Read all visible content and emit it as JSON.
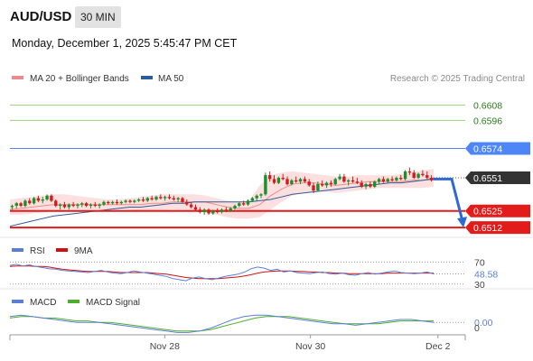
{
  "header": {
    "pair": "AUD/USD",
    "interval": "30 MIN",
    "datetime": "Monday, December 1, 2025 5:45:47 PM CET"
  },
  "colors": {
    "resistance": "#9bd07c",
    "pivot": "#4f86f7",
    "support": "#e21b1b",
    "current": "#333333",
    "ma20": "#f08a8a",
    "bollinger_fill": "#fbd6d6",
    "ma50": "#2e5b9a",
    "candle_up": "#1a8f2a",
    "candle_down": "#d01c1c",
    "rsi": "#5b7fd6",
    "rsi_ma": "#cc1111",
    "macd": "#5b7fd6",
    "macd_signal": "#4caf2a",
    "arrow": "#2e6ad1"
  },
  "chart_data": [
    {
      "type": "candlestick",
      "panel": "price",
      "legend": [
        {
          "label": "MA 20 + Bollinger Bands",
          "color": "#f08a8a"
        },
        {
          "label": "MA 50",
          "color": "#2e5b9a"
        }
      ],
      "credit": "Research © 2025 Trading Central",
      "ylim": [
        0.6505,
        0.6621
      ],
      "levels": [
        {
          "value": 0.6608,
          "label": "0.6608",
          "kind": "resistance"
        },
        {
          "value": 0.6596,
          "label": "0.6596",
          "kind": "resistance"
        },
        {
          "value": 0.6574,
          "label": "0.6574",
          "kind": "pivot"
        },
        {
          "value": 0.6551,
          "label": "0.6551",
          "kind": "current"
        },
        {
          "value": 0.6525,
          "label": "0.6525",
          "kind": "support"
        },
        {
          "value": 0.6512,
          "label": "0.6512",
          "kind": "support"
        }
      ],
      "candles": [
        [
          0.6528,
          0.653,
          0.6526,
          0.6529
        ],
        [
          0.6529,
          0.6532,
          0.6527,
          0.6531
        ],
        [
          0.6531,
          0.6532,
          0.6528,
          0.6529
        ],
        [
          0.6529,
          0.6534,
          0.6528,
          0.6533
        ],
        [
          0.6533,
          0.6535,
          0.653,
          0.6531
        ],
        [
          0.6531,
          0.6536,
          0.653,
          0.6535
        ],
        [
          0.6535,
          0.6537,
          0.6532,
          0.6533
        ],
        [
          0.6533,
          0.6536,
          0.6531,
          0.6534
        ],
        [
          0.6534,
          0.6538,
          0.6533,
          0.6537
        ],
        [
          0.6537,
          0.6538,
          0.6532,
          0.6533
        ],
        [
          0.6533,
          0.6534,
          0.6528,
          0.6529
        ],
        [
          0.6529,
          0.6531,
          0.6526,
          0.653
        ],
        [
          0.653,
          0.6532,
          0.6527,
          0.6528
        ],
        [
          0.6528,
          0.6531,
          0.6526,
          0.653
        ],
        [
          0.653,
          0.6532,
          0.6528,
          0.6529
        ],
        [
          0.6529,
          0.6531,
          0.6527,
          0.653
        ],
        [
          0.653,
          0.6532,
          0.6528,
          0.6531
        ],
        [
          0.6531,
          0.6532,
          0.6528,
          0.6529
        ],
        [
          0.6529,
          0.6531,
          0.6527,
          0.653
        ],
        [
          0.653,
          0.6532,
          0.6528,
          0.6529
        ],
        [
          0.6529,
          0.6531,
          0.6527,
          0.653
        ],
        [
          0.653,
          0.6533,
          0.6529,
          0.6532
        ],
        [
          0.6532,
          0.6533,
          0.653,
          0.6531
        ],
        [
          0.6531,
          0.6533,
          0.653,
          0.6532
        ],
        [
          0.6532,
          0.6534,
          0.653,
          0.6531
        ],
        [
          0.6531,
          0.6533,
          0.653,
          0.6532
        ],
        [
          0.6532,
          0.6534,
          0.6531,
          0.6533
        ],
        [
          0.6533,
          0.6534,
          0.6531,
          0.6532
        ],
        [
          0.6532,
          0.6534,
          0.6531,
          0.6533
        ],
        [
          0.6533,
          0.6535,
          0.6532,
          0.6534
        ],
        [
          0.6534,
          0.6536,
          0.6532,
          0.6533
        ],
        [
          0.6533,
          0.6536,
          0.6532,
          0.6535
        ],
        [
          0.6535,
          0.6537,
          0.6533,
          0.6534
        ],
        [
          0.6534,
          0.6537,
          0.6533,
          0.6536
        ],
        [
          0.6536,
          0.6538,
          0.6534,
          0.6535
        ],
        [
          0.6535,
          0.6537,
          0.6533,
          0.6536
        ],
        [
          0.6536,
          0.6538,
          0.6534,
          0.6535
        ],
        [
          0.6535,
          0.6537,
          0.6533,
          0.6534
        ],
        [
          0.6534,
          0.6536,
          0.6532,
          0.6535
        ],
        [
          0.6535,
          0.6536,
          0.6531,
          0.6532
        ],
        [
          0.6532,
          0.6534,
          0.6529,
          0.653
        ],
        [
          0.653,
          0.6532,
          0.6527,
          0.6528
        ],
        [
          0.6528,
          0.653,
          0.6525,
          0.6526
        ],
        [
          0.6526,
          0.6528,
          0.6523,
          0.6524
        ],
        [
          0.6524,
          0.6527,
          0.6522,
          0.6526
        ],
        [
          0.6526,
          0.6527,
          0.6522,
          0.6523
        ],
        [
          0.6523,
          0.6526,
          0.6522,
          0.6525
        ],
        [
          0.6525,
          0.6527,
          0.6523,
          0.6524
        ],
        [
          0.6524,
          0.6527,
          0.6523,
          0.6526
        ],
        [
          0.6526,
          0.6528,
          0.6524,
          0.6525
        ],
        [
          0.6525,
          0.6528,
          0.6524,
          0.6527
        ],
        [
          0.6527,
          0.653,
          0.6526,
          0.6529
        ],
        [
          0.6529,
          0.6532,
          0.6528,
          0.6531
        ],
        [
          0.6531,
          0.6533,
          0.6529,
          0.653
        ],
        [
          0.653,
          0.6534,
          0.6529,
          0.6533
        ],
        [
          0.6533,
          0.6536,
          0.6532,
          0.6535
        ],
        [
          0.6535,
          0.6538,
          0.6533,
          0.6537
        ],
        [
          0.6537,
          0.6539,
          0.6535,
          0.6538
        ],
        [
          0.6538,
          0.6555,
          0.6537,
          0.6553
        ],
        [
          0.6553,
          0.6556,
          0.6548,
          0.655
        ],
        [
          0.655,
          0.6553,
          0.6546,
          0.6547
        ],
        [
          0.6547,
          0.6552,
          0.6546,
          0.6551
        ],
        [
          0.6551,
          0.6554,
          0.6549,
          0.655
        ],
        [
          0.655,
          0.6552,
          0.6545,
          0.6546
        ],
        [
          0.6546,
          0.655,
          0.6545,
          0.6549
        ],
        [
          0.6549,
          0.6552,
          0.6547,
          0.6548
        ],
        [
          0.6548,
          0.6551,
          0.6546,
          0.655
        ],
        [
          0.655,
          0.6552,
          0.6547,
          0.6548
        ],
        [
          0.6548,
          0.655,
          0.6544,
          0.6545
        ],
        [
          0.6545,
          0.6547,
          0.6539,
          0.6541
        ],
        [
          0.6541,
          0.6548,
          0.654,
          0.6546
        ],
        [
          0.6546,
          0.6549,
          0.6544,
          0.6545
        ],
        [
          0.6545,
          0.6548,
          0.6543,
          0.6547
        ],
        [
          0.6547,
          0.6549,
          0.6544,
          0.6546
        ],
        [
          0.6546,
          0.6551,
          0.6545,
          0.655
        ],
        [
          0.655,
          0.6554,
          0.6549,
          0.6552
        ],
        [
          0.6552,
          0.6554,
          0.6547,
          0.6548
        ],
        [
          0.6548,
          0.655,
          0.6545,
          0.6549
        ],
        [
          0.6549,
          0.6552,
          0.6547,
          0.6548
        ],
        [
          0.6548,
          0.6551,
          0.6546,
          0.6547
        ],
        [
          0.6547,
          0.6549,
          0.6543,
          0.6544
        ],
        [
          0.6544,
          0.6547,
          0.6542,
          0.6546
        ],
        [
          0.6546,
          0.6548,
          0.6543,
          0.6544
        ],
        [
          0.6544,
          0.6549,
          0.6543,
          0.6548
        ],
        [
          0.6548,
          0.6551,
          0.6546,
          0.655
        ],
        [
          0.655,
          0.6552,
          0.6547,
          0.6548
        ],
        [
          0.6548,
          0.6551,
          0.6547,
          0.655
        ],
        [
          0.655,
          0.6552,
          0.6548,
          0.6549
        ],
        [
          0.6549,
          0.6552,
          0.6548,
          0.6551
        ],
        [
          0.6551,
          0.6553,
          0.6549,
          0.655
        ],
        [
          0.655,
          0.6557,
          0.6549,
          0.6556
        ],
        [
          0.6556,
          0.6559,
          0.6553,
          0.6555
        ],
        [
          0.6555,
          0.6557,
          0.655,
          0.6551
        ],
        [
          0.6551,
          0.6555,
          0.655,
          0.6554
        ],
        [
          0.6554,
          0.6557,
          0.6552,
          0.6553
        ],
        [
          0.6553,
          0.6556,
          0.655,
          0.6551
        ],
        [
          0.6551,
          0.6553,
          0.6548,
          0.6549
        ]
      ],
      "ma20": [
        0.6526,
        0.6527,
        0.6528,
        0.6529,
        0.653,
        0.653,
        0.653,
        0.653,
        0.653,
        0.653,
        0.653,
        0.653,
        0.653,
        0.6531,
        0.6531,
        0.6532,
        0.6532,
        0.6532,
        0.6532,
        0.653,
        0.6528,
        0.6527,
        0.6527,
        0.653,
        0.6537,
        0.6542,
        0.6546,
        0.6547,
        0.6547,
        0.6546,
        0.6545,
        0.6546,
        0.6547,
        0.6548,
        0.6548,
        0.6548,
        0.6548,
        0.6549,
        0.6549,
        0.6551
      ],
      "boll_upper": [
        0.6534,
        0.6535,
        0.6536,
        0.6537,
        0.6538,
        0.6538,
        0.6537,
        0.6536,
        0.6535,
        0.6534,
        0.6534,
        0.6535,
        0.6536,
        0.6537,
        0.6538,
        0.6538,
        0.6538,
        0.6538,
        0.6537,
        0.6535,
        0.6533,
        0.6532,
        0.6533,
        0.6545,
        0.6553,
        0.6555,
        0.6556,
        0.6555,
        0.6554,
        0.6553,
        0.6552,
        0.6552,
        0.6553,
        0.6553,
        0.6553,
        0.6553,
        0.6554,
        0.6555,
        0.6557,
        0.6558
      ],
      "boll_lower": [
        0.6522,
        0.6522,
        0.6523,
        0.6524,
        0.6525,
        0.6526,
        0.6526,
        0.6526,
        0.6526,
        0.6526,
        0.6526,
        0.6526,
        0.6525,
        0.6525,
        0.6525,
        0.6526,
        0.6526,
        0.6525,
        0.6524,
        0.6522,
        0.652,
        0.6519,
        0.6519,
        0.652,
        0.6526,
        0.6532,
        0.6537,
        0.6539,
        0.654,
        0.654,
        0.6539,
        0.654,
        0.6541,
        0.6542,
        0.6543,
        0.6543,
        0.6543,
        0.6543,
        0.6543,
        0.6544
      ],
      "ma50": [
        0.6513,
        0.6515,
        0.6517,
        0.6519,
        0.6521,
        0.6522,
        0.6523,
        0.6524,
        0.6525,
        0.6526,
        0.6527,
        0.6528,
        0.6528,
        0.6529,
        0.653,
        0.6531,
        0.6531,
        0.6532,
        0.6532,
        0.6532,
        0.6532,
        0.6532,
        0.6532,
        0.6533,
        0.6534,
        0.6536,
        0.6538,
        0.6539,
        0.654,
        0.6541,
        0.6542,
        0.6543,
        0.6544,
        0.6545,
        0.6546,
        0.6547,
        0.6547,
        0.6548,
        0.6549,
        0.655
      ],
      "projection": [
        0.655,
        0.655,
        0.6512
      ]
    },
    {
      "type": "line",
      "panel": "rsi",
      "legend": [
        {
          "label": "RSI",
          "color": "#5b7fd6"
        },
        {
          "label": "9MA",
          "color": "#cc1111"
        }
      ],
      "ylim": [
        28,
        74
      ],
      "levels": [
        {
          "value": 70,
          "label": "70"
        },
        {
          "value": 30,
          "label": "30"
        }
      ],
      "current_label": "48.58",
      "rsi": [
        64,
        66,
        63,
        65,
        62,
        60,
        58,
        57,
        55,
        54,
        53,
        52,
        51,
        53,
        55,
        52,
        50,
        49,
        51,
        54,
        52,
        50,
        48,
        46,
        44,
        40,
        38,
        36,
        41,
        43,
        40,
        38,
        41,
        44,
        46,
        48,
        52,
        58,
        61,
        59,
        55,
        57,
        52,
        54,
        51,
        50,
        49,
        51,
        52,
        49,
        48,
        50,
        47,
        46,
        49,
        51,
        48,
        50,
        52,
        54,
        51,
        50,
        49,
        50,
        52,
        48.58
      ],
      "rsi_ma": [
        62,
        63,
        63,
        63,
        62,
        62,
        61,
        59,
        57,
        56,
        55,
        54,
        53,
        53,
        53,
        53,
        52,
        51,
        51,
        51,
        51,
        51,
        50,
        49,
        48,
        46,
        44,
        42,
        41,
        40,
        40,
        40,
        40,
        41,
        42,
        43,
        45,
        47,
        50,
        52,
        53,
        54,
        54,
        54,
        53,
        53,
        52,
        52,
        51,
        51,
        50,
        50,
        49,
        49,
        49,
        49,
        49,
        49,
        50,
        50,
        50,
        50,
        50,
        50,
        50,
        50
      ]
    },
    {
      "type": "line",
      "panel": "macd",
      "legend": [
        {
          "label": "MACD",
          "color": "#5b7fd6"
        },
        {
          "label": "MACD Signal",
          "color": "#4caf2a"
        }
      ],
      "ylim": [
        -0.0008,
        0.0007
      ],
      "current_label": "0.00",
      "axis_label_low": "0",
      "macd": [
        0.0004,
        0.0005,
        0.0004,
        0.0003,
        0.0002,
        0.0001,
        0.0,
        0.0,
        0.0,
        -0.0001,
        -0.0002,
        -0.0003,
        -0.0004,
        -0.0005,
        -0.0006,
        -0.0007,
        -0.0007,
        -0.0006,
        -0.0004,
        -0.0001,
        0.0002,
        0.0004,
        0.0005,
        0.0005,
        0.0004,
        0.0003,
        0.0002,
        0.0001,
        0.0,
        -0.0001,
        -0.0001,
        -0.0002,
        -0.0001,
        0.0,
        0.0001,
        0.0002,
        0.0002,
        0.0001,
        0.0
      ],
      "macd_signal": [
        0.0003,
        0.0004,
        0.0004,
        0.0003,
        0.0003,
        0.0002,
        0.0001,
        0.0001,
        0.0,
        0.0,
        -0.0001,
        -0.0002,
        -0.0003,
        -0.0004,
        -0.0005,
        -0.0006,
        -0.0006,
        -0.0006,
        -0.0005,
        -0.0003,
        -0.0001,
        0.0001,
        0.0003,
        0.0004,
        0.0004,
        0.0004,
        0.0003,
        0.0002,
        0.0001,
        0.0,
        -0.0001,
        -0.0001,
        -0.0001,
        -0.0001,
        0.0,
        0.0001,
        0.0001,
        0.0001,
        0.0001
      ]
    }
  ],
  "time_axis": {
    "labels": [
      {
        "text": "Nov 28",
        "pos": 0.34
      },
      {
        "text": "Nov 30",
        "pos": 0.66
      },
      {
        "text": "Dec 2",
        "pos": 0.94
      }
    ]
  }
}
